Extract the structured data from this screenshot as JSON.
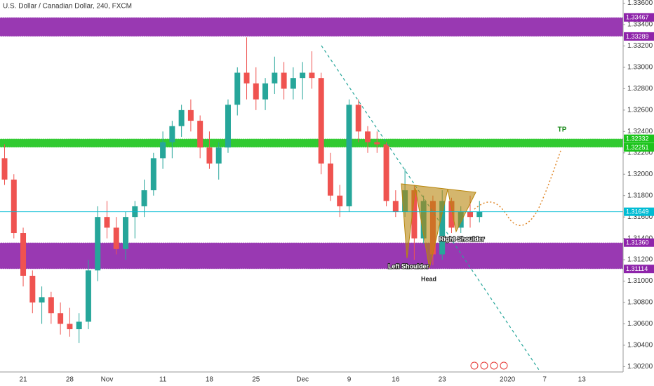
{
  "chart_data": {
    "type": "candlestick",
    "title": "U.S. Dollar / Canadian Dollar, 240, FXCM",
    "categories": [
      null,
      null,
      "21",
      null,
      null,
      null,
      null,
      "28",
      null,
      null,
      null,
      "Nov",
      null,
      null,
      null,
      null,
      null,
      "11",
      null,
      null,
      null,
      null,
      "18",
      null,
      null,
      null,
      null,
      "25",
      null,
      null,
      null,
      null,
      "Dec",
      null,
      null,
      null,
      null,
      "9",
      null,
      null,
      null,
      null,
      "16",
      null,
      null,
      null,
      null,
      "23",
      null,
      null,
      null,
      null,
      null,
      null,
      "2020",
      null,
      null,
      null,
      "7",
      null,
      null,
      null,
      "13"
    ],
    "open": [
      1.3215,
      1.3195,
      1.3145,
      1.3105,
      1.308,
      1.3085,
      1.307,
      1.306,
      1.3055,
      1.3062,
      1.311,
      1.316,
      1.315,
      1.313,
      1.316,
      1.317,
      1.3185,
      1.3215,
      1.323,
      1.3245,
      1.326,
      1.325,
      1.3225,
      1.321,
      1.3225,
      1.3265,
      1.3295,
      1.3285,
      1.327,
      1.3285,
      1.3295,
      1.328,
      1.329,
      1.3295,
      1.329,
      1.321,
      1.318,
      1.317,
      1.3265,
      1.324,
      1.323,
      1.3228,
      1.3175,
      1.3165,
      1.3185,
      1.314,
      1.3175,
      1.3125,
      1.3175,
      1.315,
      1.3165,
      1.316,
      null,
      null,
      null,
      null,
      null,
      null,
      null,
      null,
      null,
      null,
      null
    ],
    "high": [
      1.3228,
      1.32,
      1.315,
      1.311,
      1.3095,
      1.309,
      1.308,
      1.3075,
      1.307,
      1.312,
      1.317,
      1.3175,
      1.316,
      1.3165,
      1.3175,
      1.3195,
      1.322,
      1.324,
      1.325,
      1.3265,
      1.327,
      1.3255,
      1.324,
      1.323,
      1.327,
      1.33,
      1.3328,
      1.33,
      1.329,
      1.331,
      1.3305,
      1.33,
      1.3305,
      1.3315,
      1.3295,
      1.322,
      1.319,
      1.327,
      1.327,
      1.3245,
      1.324,
      1.323,
      1.3185,
      1.3205,
      1.319,
      1.318,
      1.318,
      1.3185,
      1.3178,
      1.317,
      1.318,
      1.3175,
      null,
      null,
      null,
      null,
      null,
      null,
      null,
      null,
      null,
      null,
      null
    ],
    "low": [
      1.319,
      1.314,
      1.3095,
      1.307,
      1.306,
      1.306,
      1.305,
      1.3048,
      1.3042,
      1.3055,
      1.31,
      1.314,
      1.3125,
      1.312,
      1.314,
      1.316,
      1.318,
      1.3205,
      1.3215,
      1.3235,
      1.324,
      1.3215,
      1.3205,
      1.3195,
      1.322,
      1.3255,
      1.327,
      1.326,
      1.326,
      1.3275,
      1.327,
      1.327,
      1.327,
      1.328,
      1.32,
      1.3175,
      1.316,
      1.3165,
      1.323,
      1.322,
      1.322,
      1.317,
      1.316,
      1.316,
      1.312,
      1.3135,
      1.3115,
      1.312,
      1.3145,
      1.3145,
      1.315,
      1.3155,
      null,
      null,
      null,
      null,
      null,
      null,
      null,
      null,
      null,
      null,
      null
    ],
    "close": [
      1.3195,
      1.3145,
      1.3105,
      1.308,
      1.3085,
      1.307,
      1.306,
      1.3055,
      1.3062,
      1.311,
      1.316,
      1.315,
      1.313,
      1.316,
      1.317,
      1.3185,
      1.3215,
      1.323,
      1.3245,
      1.326,
      1.325,
      1.3225,
      1.321,
      1.3225,
      1.3265,
      1.3295,
      1.3285,
      1.327,
      1.3285,
      1.3295,
      1.328,
      1.329,
      1.3295,
      1.329,
      1.321,
      1.318,
      1.317,
      1.3265,
      1.324,
      1.323,
      1.3228,
      1.3175,
      1.3165,
      1.3185,
      1.314,
      1.3175,
      1.3125,
      1.3175,
      1.315,
      1.3165,
      1.316,
      1.3165,
      null,
      null,
      null,
      null,
      null,
      null,
      null,
      null,
      null,
      null,
      null
    ],
    "up_color": "#26a69a",
    "down_color": "#ef5350",
    "ylim": [
      1.3015,
      1.3363
    ],
    "yticks": [
      {
        "value": 1.302,
        "label": "1.30200"
      },
      {
        "value": 1.304,
        "label": "1.30400"
      },
      {
        "value": 1.306,
        "label": "1.30600"
      },
      {
        "value": 1.308,
        "label": "1.30800"
      },
      {
        "value": 1.31,
        "label": "1.31000"
      },
      {
        "value": 1.312,
        "label": "1.31200"
      },
      {
        "value": 1.314,
        "label": "1.31400"
      },
      {
        "value": 1.316,
        "label": "1.31600"
      },
      {
        "value": 1.318,
        "label": "1.31800"
      },
      {
        "value": 1.32,
        "label": "1.32000"
      },
      {
        "value": 1.322,
        "label": "1.32200"
      },
      {
        "value": 1.324,
        "label": "1.32400"
      },
      {
        "value": 1.326,
        "label": "1.32600"
      },
      {
        "value": 1.328,
        "label": "1.32800"
      },
      {
        "value": 1.33,
        "label": "1.33000"
      },
      {
        "value": 1.332,
        "label": "1.33200"
      },
      {
        "value": 1.334,
        "label": "1.33400"
      },
      {
        "value": 1.336,
        "label": "1.33600"
      }
    ],
    "zones": [
      {
        "low": 1.33289,
        "high": 1.33467,
        "color": "#8e24aa"
      },
      {
        "low": 1.32251,
        "high": 1.32332,
        "color": "#1bc41b"
      },
      {
        "low": {
          "value": 1.31114,
          "label": "1.31114"
        },
        "high": {
          "value": 1.3136,
          "label": "1.31360"
        },
        "color": "#8e24aa"
      }
    ],
    "last_price": {
      "value": 1.31649,
      "color": "#00bcd4"
    },
    "annotations": [
      "TP",
      "Left Shoulder",
      "Head",
      "Right Shoulder"
    ]
  }
}
